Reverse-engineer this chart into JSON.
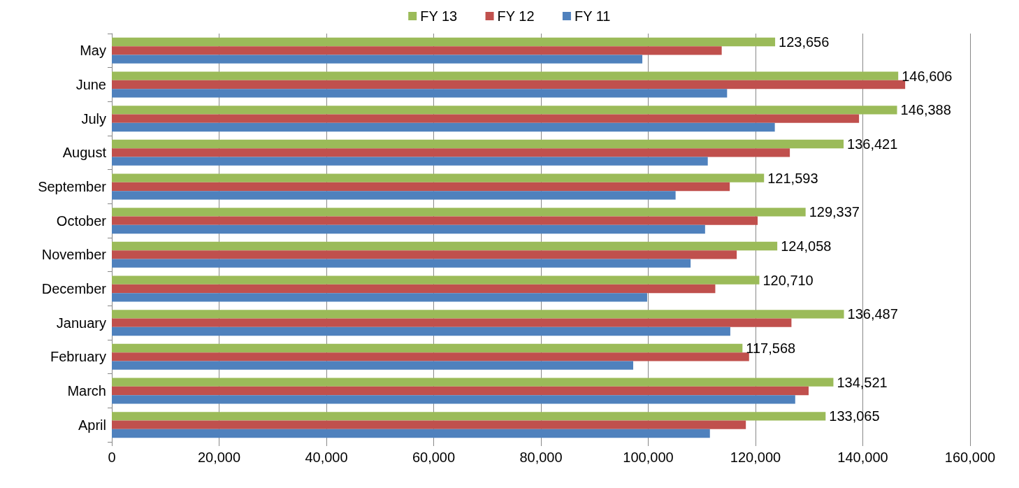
{
  "chart_data": {
    "type": "bar",
    "orientation": "horizontal",
    "categories": [
      "May",
      "June",
      "July",
      "August",
      "September",
      "October",
      "November",
      "December",
      "January",
      "February",
      "March",
      "April"
    ],
    "series": [
      {
        "name": "FY 13",
        "color": "#9bbb59",
        "values": [
          123656,
          146606,
          146388,
          136421,
          121593,
          129337,
          124058,
          120710,
          136487,
          117568,
          134521,
          133065
        ],
        "value_labels": [
          "123,656",
          "146,606",
          "146,388",
          "136,421",
          "121,593",
          "129,337",
          "124,058",
          "120,710",
          "136,487",
          "117,568",
          "134,521",
          "133,065"
        ]
      },
      {
        "name": "FY 12",
        "color": "#c0504d",
        "values": [
          113700,
          147900,
          139300,
          126400,
          115200,
          120400,
          116500,
          112500,
          126700,
          118800,
          129900,
          118200
        ]
      },
      {
        "name": "FY 11",
        "color": "#4f81bd",
        "values": [
          98900,
          114700,
          123600,
          111100,
          105100,
          110600,
          107900,
          99800,
          115300,
          97200,
          127400,
          111500
        ]
      }
    ],
    "xlim": [
      0,
      160000
    ],
    "xticks": [
      {
        "value": 0,
        "label": "0"
      },
      {
        "value": 20000,
        "label": "20,000"
      },
      {
        "value": 40000,
        "label": "40,000"
      },
      {
        "value": 60000,
        "label": "60,000"
      },
      {
        "value": 80000,
        "label": "80,000"
      },
      {
        "value": 100000,
        "label": "100,000"
      },
      {
        "value": 120000,
        "label": "120,000"
      },
      {
        "value": 140000,
        "label": "140,000"
      },
      {
        "value": 160000,
        "label": "160,000"
      }
    ],
    "grid": "x",
    "legend": "top"
  }
}
